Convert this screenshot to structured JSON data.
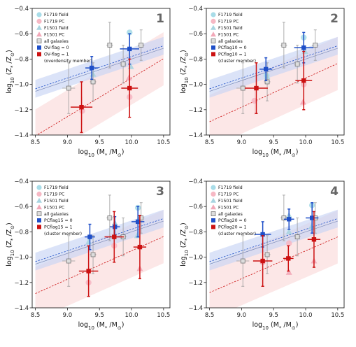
{
  "chart_data": {
    "type": "scatter",
    "xlabel": "log$_{10}$ (M$_*$/M$_\\odot$)",
    "xlabel_text": {
      "pre": "log",
      "sub": "10",
      "mid": " (M",
      "sub2": "*",
      "mid2": " /M",
      "sub3": "⊙",
      "post": ")"
    },
    "ylabel_text": {
      "pre": "log",
      "sub": "10",
      "mid": " (Z",
      "sub2": "*",
      "mid2": " /Z",
      "sub3": "⊙",
      "post": ")"
    },
    "xlim": [
      8.45,
      10.6
    ],
    "ylim": [
      -1.4,
      -0.4
    ],
    "xticks": [
      8.5,
      9.0,
      9.5,
      10.0,
      10.5
    ],
    "xtick_labels": [
      "8.5",
      "9.0",
      "9.5",
      "10.0",
      "10.5"
    ],
    "yticks": [
      -1.4,
      -1.2,
      -1.0,
      -0.8,
      -0.6,
      -0.4
    ],
    "ytick_labels": [
      "−1.4",
      "−1.2",
      "−1.0",
      "−0.8",
      "−0.6",
      "−0.4"
    ],
    "colors": {
      "field_circle": "#a8dce8",
      "pc_circle": "#f6b8c4",
      "field_triangle": "#a8d4e0",
      "pc_triangle": "#f2a8b8",
      "all_galaxies": "#bbbbbb",
      "member0": "#1f4fc8",
      "member1": "#cc1111",
      "band0": "#c8d4f4",
      "band1": "#fbdada"
    },
    "panels": [
      {
        "number": "1",
        "legend": [
          "F1719 field",
          "F1719 PC",
          "F1501 field",
          "F1501 PC",
          "all galaxies",
          "OV-flag = 0",
          "OV-flag = 1",
          "(overdensity member)"
        ],
        "fit0": {
          "slope": 0.17,
          "intercept": -2.48,
          "x_range": [
            8.5,
            10.5
          ],
          "band": 0.07
        },
        "fit1": {
          "slope": 0.305,
          "intercept": -4.0,
          "x_range": [
            8.5,
            10.5
          ],
          "band": 0.21
        },
        "field_circles": [
          [
            9.97,
            -0.59
          ]
        ],
        "pc_circles": [
          [
            9.23,
            -1.21
          ],
          [
            9.97,
            -1.1
          ]
        ],
        "field_tris": [
          [
            9.99,
            -0.86
          ],
          [
            9.4,
            -0.92
          ]
        ],
        "pc_tris": [
          [
            9.96,
            -0.95
          ]
        ],
        "all_galaxies": [
          {
            "x": 9.02,
            "y": -1.03,
            "xerr": 0.1,
            "yerr": 0.2
          },
          {
            "x": 9.4,
            "y": -0.98,
            "xerr": 0.05,
            "yerr": 0.15
          },
          {
            "x": 9.66,
            "y": -0.69,
            "xerr": 0.05,
            "yerr": 0.18
          },
          {
            "x": 9.87,
            "y": -0.84,
            "xerr": 0.05,
            "yerr": 0.15
          },
          {
            "x": 10.15,
            "y": -0.69,
            "xerr": 0.05,
            "yerr": 0.12
          }
        ],
        "member0": [
          {
            "x": 9.38,
            "y": -0.87,
            "xerr": 0.1,
            "yerr": 0.09
          },
          {
            "x": 9.97,
            "y": -0.72,
            "xerr": 0.15,
            "yerr": 0.12
          }
        ],
        "member1": [
          {
            "x": 9.22,
            "y": -1.18,
            "xerr": 0.17,
            "yerr": 0.2
          },
          {
            "x": 9.97,
            "y": -1.03,
            "xerr": 0.13,
            "yerr": 0.23
          }
        ]
      },
      {
        "number": "2",
        "legend": [
          "F1719 field",
          "F1719 PC",
          "F1501 field",
          "F1501 PC",
          "all galaxies",
          "PCflag10 = 0",
          "PCflag10 = 1",
          "(cluster member)"
        ],
        "fit0": {
          "slope": 0.17,
          "intercept": -2.48,
          "x_range": [
            8.5,
            10.5
          ],
          "band": 0.07
        },
        "fit1": {
          "slope": 0.23,
          "intercept": -3.25,
          "x_range": [
            8.5,
            10.5
          ],
          "band": 0.21
        },
        "field_circles": [
          [
            9.97,
            -0.63
          ],
          [
            9.39,
            -0.93
          ]
        ],
        "pc_circles": [
          [
            9.2,
            -1.13
          ],
          [
            9.97,
            -1.0
          ]
        ],
        "field_tris": [
          [
            9.99,
            -0.74
          ],
          [
            9.4,
            -0.94
          ]
        ],
        "pc_tris": [
          [
            9.96,
            -1.14
          ]
        ],
        "all_galaxies": [
          {
            "x": 9.02,
            "y": -1.03,
            "xerr": 0.1,
            "yerr": 0.2
          },
          {
            "x": 9.4,
            "y": -0.98,
            "xerr": 0.05,
            "yerr": 0.15
          },
          {
            "x": 9.66,
            "y": -0.69,
            "xerr": 0.05,
            "yerr": 0.18
          },
          {
            "x": 9.87,
            "y": -0.84,
            "xerr": 0.05,
            "yerr": 0.15
          },
          {
            "x": 10.15,
            "y": -0.69,
            "xerr": 0.05,
            "yerr": 0.12
          }
        ],
        "member0": [
          {
            "x": 9.38,
            "y": -0.88,
            "xerr": 0.1,
            "yerr": 0.09
          },
          {
            "x": 9.97,
            "y": -0.71,
            "xerr": 0.15,
            "yerr": 0.12
          }
        ],
        "member1": [
          {
            "x": 9.23,
            "y": -1.03,
            "xerr": 0.18,
            "yerr": 0.2
          },
          {
            "x": 9.97,
            "y": -0.97,
            "xerr": 0.13,
            "yerr": 0.23
          }
        ]
      },
      {
        "number": "3",
        "legend": [
          "F1719 field",
          "F1719 PC",
          "F1501 field",
          "F1501 PC",
          "all galaxies",
          "PCflag15 = 0",
          "PCflag15 = 1",
          "(cluster member)"
        ],
        "fit0": {
          "slope": 0.17,
          "intercept": -2.48,
          "x_range": [
            8.5,
            10.5
          ],
          "band": 0.07
        },
        "fit1": {
          "slope": 0.225,
          "intercept": -3.2,
          "x_range": [
            8.5,
            10.5
          ],
          "band": 0.21
        },
        "field_circles": [
          [
            10.1,
            -0.61
          ]
        ],
        "pc_circles": [
          [
            9.33,
            -1.2
          ],
          [
            9.73,
            -0.91
          ]
        ],
        "field_tris": [
          [
            9.74,
            -0.73
          ],
          [
            10.09,
            -0.83
          ],
          [
            9.33,
            -0.88
          ]
        ],
        "pc_tris": [
          [
            10.13,
            -1.09
          ]
        ],
        "all_galaxies": [
          {
            "x": 9.02,
            "y": -1.03,
            "xerr": 0.1,
            "yerr": 0.2
          },
          {
            "x": 9.4,
            "y": -0.98,
            "xerr": 0.05,
            "yerr": 0.15
          },
          {
            "x": 9.66,
            "y": -0.69,
            "xerr": 0.05,
            "yerr": 0.18
          },
          {
            "x": 9.87,
            "y": -0.84,
            "xerr": 0.05,
            "yerr": 0.15
          },
          {
            "x": 10.15,
            "y": -0.69,
            "xerr": 0.05,
            "yerr": 0.12
          }
        ],
        "member0": [
          {
            "x": 9.35,
            "y": -0.84,
            "xerr": 0.08,
            "yerr": 0.1
          },
          {
            "x": 9.74,
            "y": -0.76,
            "xerr": 0.08,
            "yerr": 0.08
          },
          {
            "x": 10.1,
            "y": -0.72,
            "xerr": 0.1,
            "yerr": 0.12
          }
        ],
        "member1": [
          {
            "x": 9.33,
            "y": -1.11,
            "xerr": 0.15,
            "yerr": 0.2
          },
          {
            "x": 9.73,
            "y": -0.84,
            "xerr": 0.15,
            "yerr": 0.2
          },
          {
            "x": 10.13,
            "y": -0.92,
            "xerr": 0.1,
            "yerr": 0.25
          }
        ]
      },
      {
        "number": "4",
        "legend": [
          "F1719 field",
          "F1719 PC",
          "F1501 field",
          "F1501 PC",
          "all galaxies",
          "PCflag20 = 0",
          "PCflag20 = 1",
          "(cluster member)"
        ],
        "fit0": {
          "slope": 0.17,
          "intercept": -2.48,
          "x_range": [
            8.5,
            10.5
          ],
          "band": 0.07
        },
        "fit1": {
          "slope": 0.22,
          "intercept": -3.15,
          "x_range": [
            8.5,
            10.5
          ],
          "band": 0.21
        },
        "field_circles": [
          [
            10.1,
            -0.59
          ]
        ],
        "pc_circles": [
          [
            9.33,
            -1.04
          ],
          [
            9.74,
            -0.89
          ]
        ],
        "field_tris": [
          [
            9.74,
            -0.8
          ],
          [
            9.74,
            -0.67
          ],
          [
            10.09,
            -0.76
          ]
        ],
        "pc_tris": [
          [
            9.74,
            -1.12
          ],
          [
            10.13,
            -1.03
          ]
        ],
        "all_galaxies": [
          {
            "x": 9.02,
            "y": -1.03,
            "xerr": 0.1,
            "yerr": 0.2
          },
          {
            "x": 9.4,
            "y": -0.98,
            "xerr": 0.05,
            "yerr": 0.15
          },
          {
            "x": 9.66,
            "y": -0.69,
            "xerr": 0.05,
            "yerr": 0.18
          },
          {
            "x": 9.87,
            "y": -0.84,
            "xerr": 0.05,
            "yerr": 0.15
          },
          {
            "x": 10.15,
            "y": -0.69,
            "xerr": 0.05,
            "yerr": 0.12
          }
        ],
        "member0": [
          {
            "x": 9.33,
            "y": -0.82,
            "xerr": 0.13,
            "yerr": 0.1
          },
          {
            "x": 9.74,
            "y": -0.7,
            "xerr": 0.08,
            "yerr": 0.08
          },
          {
            "x": 10.1,
            "y": -0.69,
            "xerr": 0.1,
            "yerr": 0.12
          }
        ],
        "member1": [
          {
            "x": 9.33,
            "y": -1.03,
            "xerr": 0.15,
            "yerr": 0.2
          },
          {
            "x": 9.73,
            "y": -1.01,
            "xerr": 0.08,
            "yerr": 0.1
          },
          {
            "x": 10.13,
            "y": -0.86,
            "xerr": 0.1,
            "yerr": 0.22
          }
        ]
      }
    ]
  }
}
